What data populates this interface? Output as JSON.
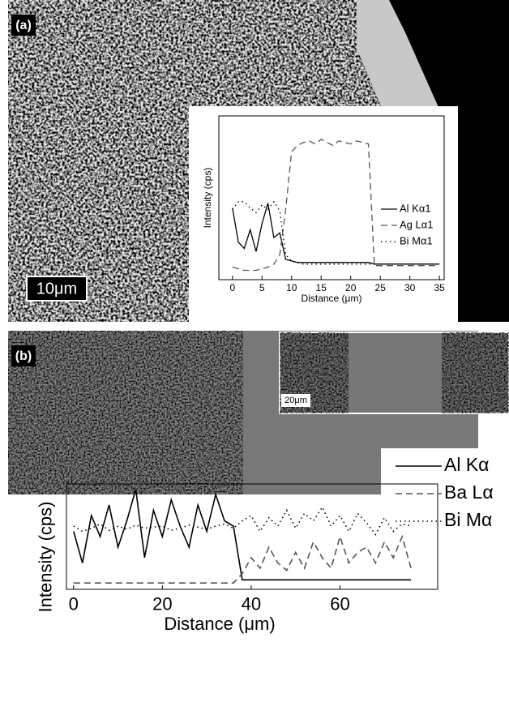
{
  "chart_data": [
    {
      "type": "line",
      "annotations": [
        "(a)",
        "10μm"
      ],
      "xlabel": "Distance (μm)",
      "ylabel": "Intensity (cps)",
      "x": [
        0,
        1,
        2,
        3,
        4,
        5,
        6,
        7,
        8,
        9,
        10,
        11,
        12,
        13,
        14,
        15,
        16,
        17,
        18,
        19,
        20,
        21,
        22,
        23,
        24,
        25,
        26,
        27,
        28,
        29,
        30,
        31,
        32,
        33,
        34,
        35
      ],
      "xlim": [
        -2.3,
        35.8
      ],
      "ylim": [
        0,
        10.5
      ],
      "xticks": [
        0,
        5,
        10,
        15,
        20,
        25,
        30,
        35
      ],
      "series": [
        {
          "name": "Al Kα1",
          "color": "#000000",
          "style": "solid",
          "values": [
            4.6,
            2.4,
            2.0,
            3.2,
            1.8,
            3.6,
            4.9,
            2.7,
            3.0,
            1.3,
            1.2,
            1.1,
            1.1,
            1.1,
            1.1,
            1.1,
            1.1,
            1.1,
            1.1,
            1.1,
            1.1,
            1.1,
            1.1,
            1.1,
            1.0,
            1.0,
            1.0,
            1.0,
            1.0,
            1.0,
            1.0,
            1.0,
            1.0,
            1.0,
            1.0,
            1.0
          ]
        },
        {
          "name": "Ag Lα1",
          "color": "#555555",
          "style": "dashed",
          "values": [
            0.8,
            0.7,
            0.6,
            0.6,
            0.6,
            0.7,
            0.8,
            1.0,
            1.6,
            4.5,
            8.2,
            8.6,
            8.8,
            8.9,
            8.7,
            9.0,
            8.8,
            8.6,
            8.9,
            8.8,
            8.7,
            8.9,
            8.8,
            8.7,
            0.9,
            0.9,
            0.9,
            0.9,
            0.9,
            0.9,
            0.9,
            0.9,
            0.9,
            0.9,
            0.9,
            0.9
          ]
        },
        {
          "name": "Bi Mα1",
          "color": "#000000",
          "style": "dotted",
          "values": [
            4.5,
            5.0,
            5.0,
            4.6,
            4.3,
            4.8,
            4.5,
            5.0,
            4.4,
            1.6,
            1.2,
            1.1,
            1.0,
            1.0,
            1.0,
            1.0,
            1.0,
            1.0,
            1.0,
            1.0,
            1.0,
            1.0,
            1.0,
            1.0,
            1.0,
            1.0,
            1.0,
            1.0,
            1.0,
            1.0,
            1.0,
            1.0,
            1.0,
            1.0,
            1.0,
            1.0
          ]
        }
      ]
    },
    {
      "type": "line",
      "annotations": [
        "(b)",
        "20μm"
      ],
      "xlabel": "Distance (μm)",
      "ylabel": "Intensity (cps)",
      "x": [
        0,
        2,
        4,
        6,
        8,
        10,
        12,
        14,
        16,
        18,
        20,
        22,
        24,
        26,
        28,
        30,
        32,
        34,
        36,
        38,
        40,
        42,
        44,
        46,
        48,
        50,
        52,
        54,
        56,
        58,
        60,
        62,
        64,
        66,
        68,
        70,
        72,
        74,
        76
      ],
      "xlim": [
        -1.6,
        82
      ],
      "ylim": [
        0,
        10
      ],
      "xticks": [
        0,
        20,
        40,
        60
      ],
      "series": [
        {
          "name": "Al Kα",
          "color": "#000000",
          "style": "solid",
          "values": [
            5.5,
            2.5,
            7,
            5,
            8,
            4,
            6.5,
            9.5,
            3,
            7.5,
            5,
            8.5,
            6,
            4,
            8,
            5.5,
            9,
            6.5,
            6,
            0.9,
            0.9,
            0.9,
            0.9,
            0.9,
            0.9,
            0.9,
            0.9,
            0.9,
            0.9,
            0.9,
            0.9,
            0.9,
            0.9,
            0.9,
            0.9,
            0.9,
            0.9,
            0.9,
            0.9
          ]
        },
        {
          "name": "Ba Lα",
          "color": "#555555",
          "style": "dashed",
          "values": [
            0.6,
            0.6,
            0.6,
            0.6,
            0.6,
            0.6,
            0.6,
            0.6,
            0.6,
            0.6,
            0.6,
            0.6,
            0.6,
            0.6,
            0.6,
            0.6,
            0.6,
            0.6,
            0.6,
            1.5,
            3,
            2,
            4,
            2.5,
            1.8,
            3.5,
            2,
            4.5,
            3,
            2,
            5,
            2.5,
            3.5,
            4,
            2.5,
            4.5,
            3,
            5,
            2
          ]
        },
        {
          "name": "Bi Mα",
          "color": "#000000",
          "style": "dotted",
          "values": [
            6,
            5.5,
            5.8,
            6.2,
            5.6,
            6,
            5.7,
            6.1,
            5.8,
            5.9,
            6,
            5.6,
            5.8,
            6.1,
            5.9,
            5.7,
            6,
            6.2,
            5.8,
            6.5,
            7,
            5.5,
            6.8,
            6,
            7.5,
            5.8,
            7.2,
            6.5,
            7.8,
            6,
            7,
            5.5,
            7.2,
            6.3,
            5.2,
            6.8,
            5.5,
            6.2,
            6
          ]
        }
      ]
    }
  ]
}
